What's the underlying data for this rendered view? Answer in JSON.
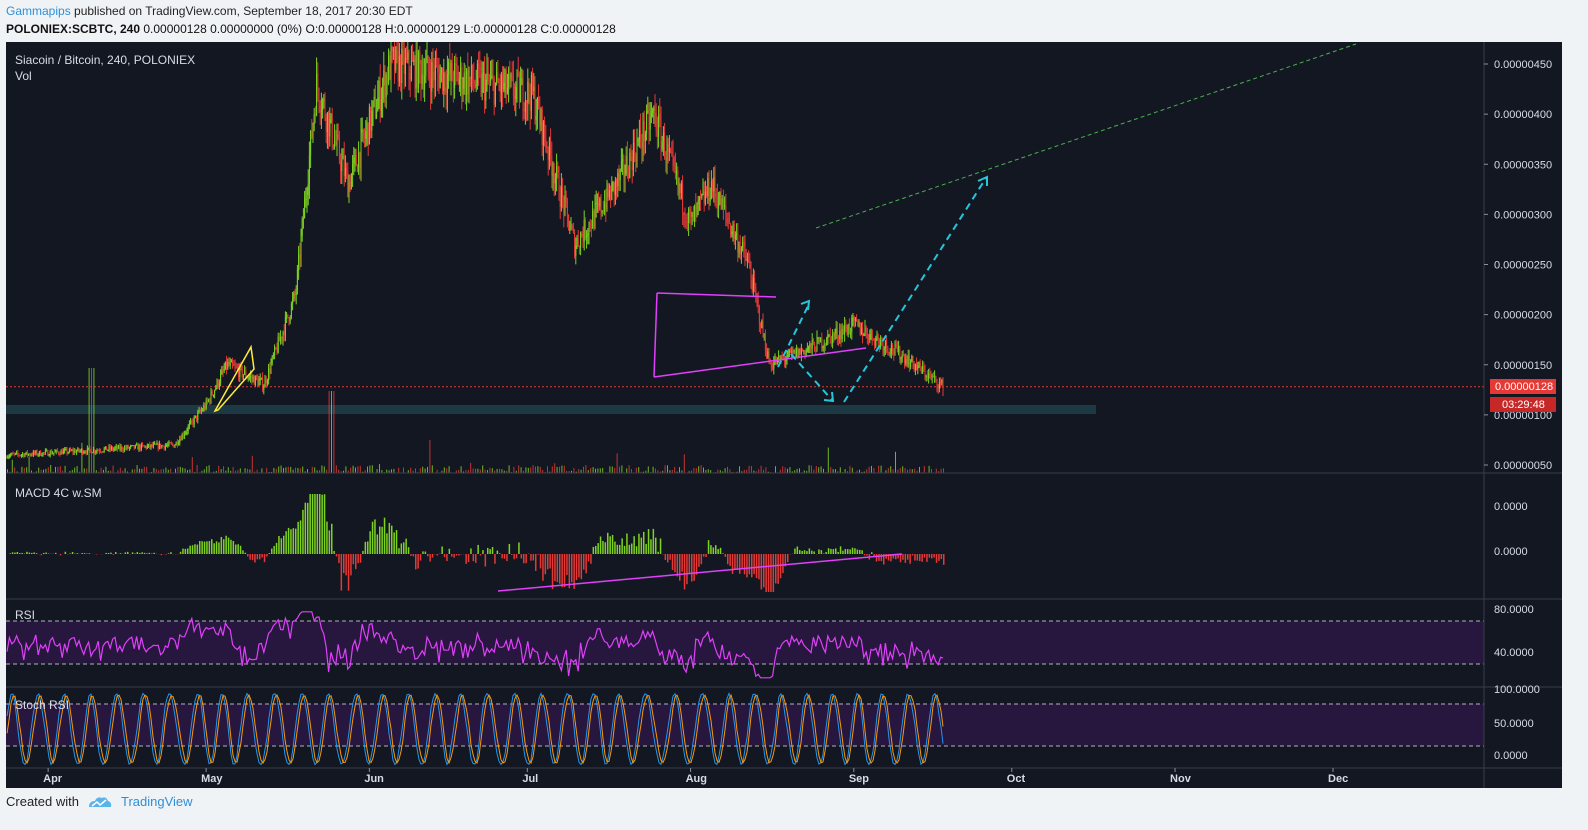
{
  "header": {
    "author": "Gammapips",
    "published_text": "published on TradingView.com, September 18, 2017 20:30 EDT",
    "symbol": "POLONIEX:SCBTC, 240",
    "ohlc": "0.00000128 0.00000000 (0%) O:0.00000128 H:0.00000129 L:0.00000128 C:0.00000128"
  },
  "footer": {
    "created_with": "Created with",
    "brand": "TradingView"
  },
  "colors": {
    "background": "#131722",
    "panel_border": "#3a3e4a",
    "up": "#7ed321",
    "down": "#e53935",
    "rsi": "#e040fb",
    "trend_magenta": "#e040fb",
    "wedge_yellow": "#ffeb3b",
    "projection_cyan": "#26c6da",
    "target_green": "#4caf50",
    "stoch_k": "#2196f3",
    "stoch_d": "#ff9800",
    "price_tag": "#e53935",
    "support_zone": "#1d3a44"
  },
  "chart_data": {
    "type": "candlestick",
    "title": "Siacoin / Bitcoin, 240, POLONIEX",
    "x_months": [
      "Apr",
      "May",
      "Jun",
      "Jul",
      "Aug",
      "Sep",
      "Oct",
      "Nov",
      "Dec"
    ],
    "price_axis_ticks": [
      "0.00000450",
      "0.00000400",
      "0.00000350",
      "0.00000300",
      "0.00000250",
      "0.00000200",
      "0.00000150",
      "0.00000100",
      "0.00000050"
    ],
    "ylim": [
      4e-07,
      4.7e-06
    ],
    "current_price": "0.00000128",
    "countdown": "03:29:48",
    "price_series_approx": [
      {
        "date": "2017-03-25",
        "close": 6e-07
      },
      {
        "date": "2017-04-10",
        "close": 6.5e-07
      },
      {
        "date": "2017-04-25",
        "close": 7e-07
      },
      {
        "date": "2017-05-01",
        "close": 1.1e-06
      },
      {
        "date": "2017-05-05",
        "close": 1.5e-06
      },
      {
        "date": "2017-05-12",
        "close": 1.3e-06
      },
      {
        "date": "2017-05-18",
        "close": 2.2e-06
      },
      {
        "date": "2017-05-22",
        "close": 4.3e-06
      },
      {
        "date": "2017-05-28",
        "close": 3.3e-06
      },
      {
        "date": "2017-06-05",
        "close": 4.5e-06
      },
      {
        "date": "2017-07-02",
        "close": 4.2e-06
      },
      {
        "date": "2017-07-10",
        "close": 2.7e-06
      },
      {
        "date": "2017-07-18",
        "close": 3.3e-06
      },
      {
        "date": "2017-07-25",
        "close": 4e-06
      },
      {
        "date": "2017-08-01",
        "close": 2.9e-06
      },
      {
        "date": "2017-08-05",
        "close": 3.3e-06
      },
      {
        "date": "2017-08-12",
        "close": 2.5e-06
      },
      {
        "date": "2017-08-16",
        "close": 1.5e-06
      },
      {
        "date": "2017-08-25",
        "close": 1.7e-06
      },
      {
        "date": "2017-09-01",
        "close": 1.9e-06
      },
      {
        "date": "2017-09-10",
        "close": 1.6e-06
      },
      {
        "date": "2017-09-18",
        "close": 1.28e-06
      }
    ],
    "panels": [
      {
        "name": "Vol"
      },
      {
        "name": "MACD 4C w.SM",
        "ticks": [
          "0.0000",
          "0.0000"
        ]
      },
      {
        "name": "RSI",
        "ticks": [
          "80.0000",
          "40.0000"
        ],
        "bands": [
          70,
          30
        ]
      },
      {
        "name": "Stoch RSI",
        "ticks": [
          "100.0000",
          "50.0000",
          "0.0000"
        ],
        "bands": [
          80,
          20
        ]
      }
    ]
  }
}
